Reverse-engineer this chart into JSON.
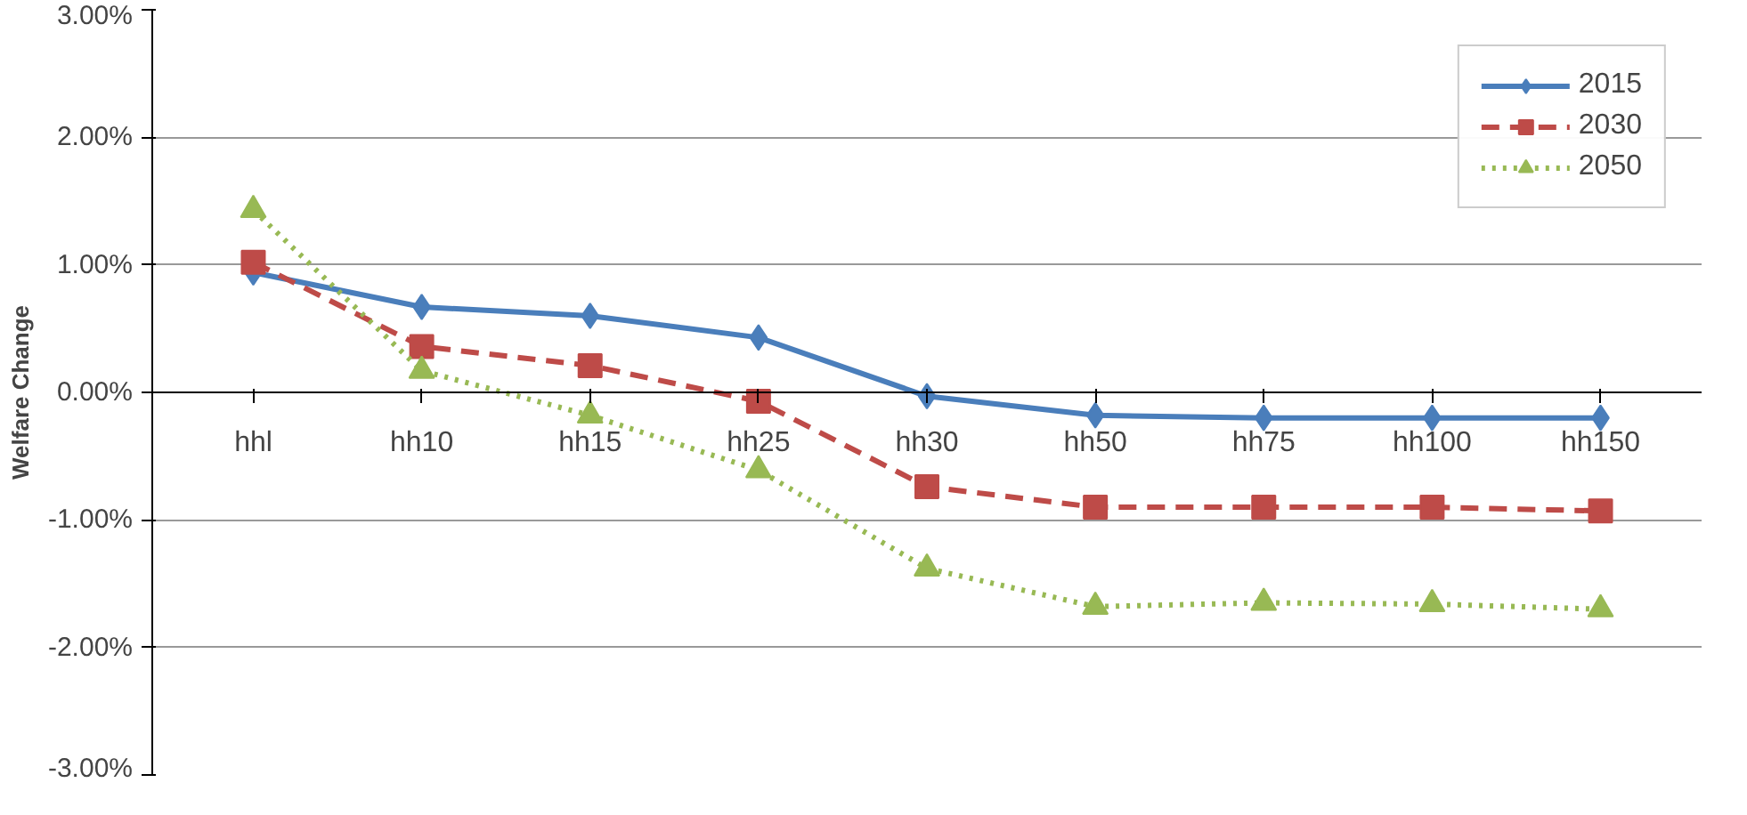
{
  "chart_data": {
    "type": "line",
    "ylabel": "Welfare Change",
    "categories": [
      "hhl",
      "hh10",
      "hh15",
      "hh25",
      "hh30",
      "hh50",
      "hh75",
      "hh100",
      "hh150"
    ],
    "series": [
      {
        "name": "2015",
        "color": "#4a7ebb",
        "marker": "diamond",
        "line_style": "solid",
        "values": [
          0.94,
          0.67,
          0.6,
          0.43,
          -0.03,
          -0.18,
          -0.2,
          -0.2,
          -0.2
        ]
      },
      {
        "name": "2030",
        "color": "#be4b48",
        "marker": "square",
        "line_style": "dashed",
        "values": [
          1.02,
          0.36,
          0.21,
          -0.07,
          -0.74,
          -0.9,
          -0.9,
          -0.9,
          -0.93
        ]
      },
      {
        "name": "2050",
        "color": "#98b954",
        "marker": "triangle",
        "line_style": "dotted",
        "values": [
          1.43,
          0.17,
          -0.18,
          -0.61,
          -1.38,
          -1.68,
          -1.65,
          -1.66,
          -1.7
        ]
      }
    ],
    "ylim": [
      -3,
      3
    ],
    "yticks": [
      {
        "value": -3,
        "label": "-3.00%"
      },
      {
        "value": -2,
        "label": "-2.00%"
      },
      {
        "value": -1,
        "label": "-1.00%"
      },
      {
        "value": 0,
        "label": "0.00%"
      },
      {
        "value": 1,
        "label": "1.00%"
      },
      {
        "value": 2,
        "label": "2.00%"
      },
      {
        "value": 3,
        "label": "3.00%"
      }
    ],
    "grid": "y",
    "legend": "top right"
  }
}
